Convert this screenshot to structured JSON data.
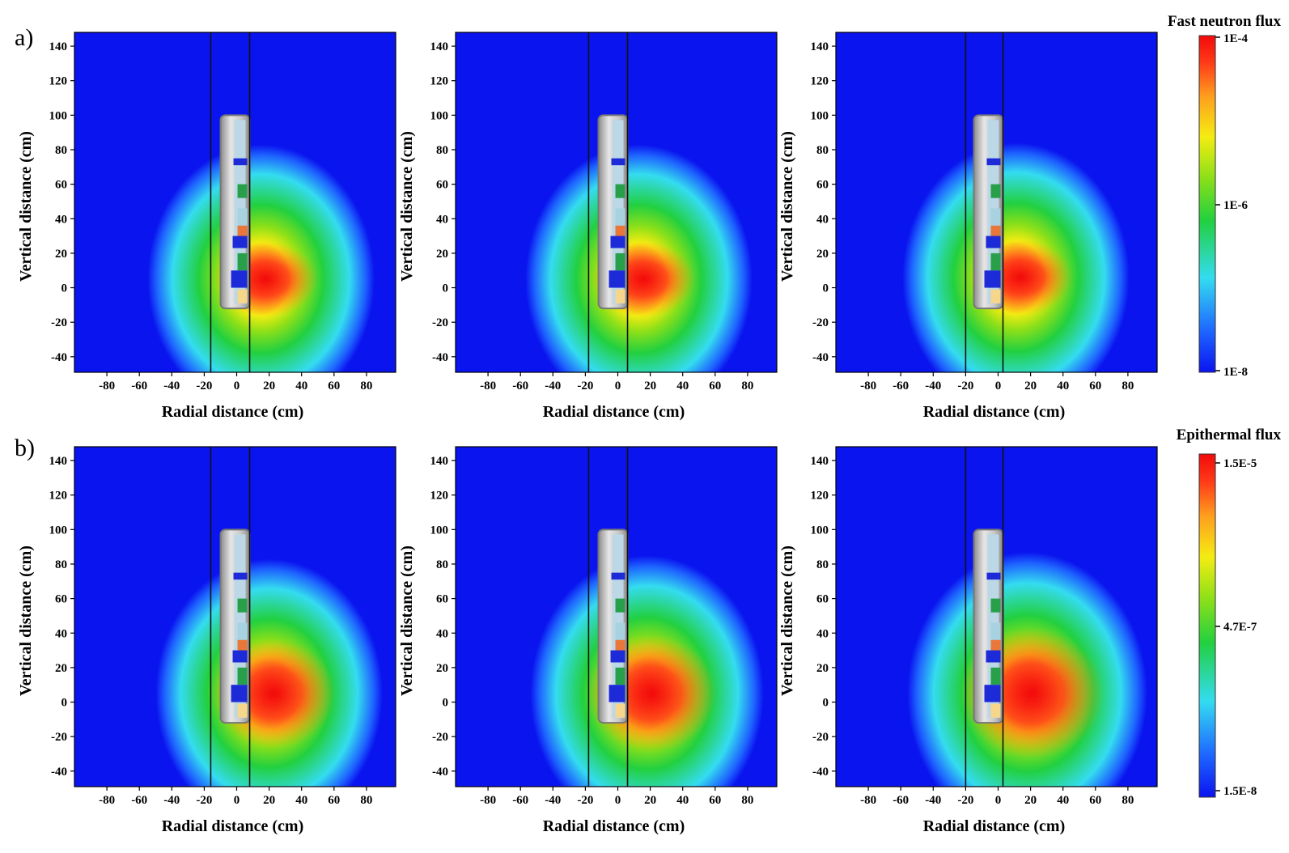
{
  "figure": {
    "rows": [
      {
        "label": "a)",
        "colorbar_title": "Fast neutron flux",
        "colorbar_ticks": [
          "1E-4",
          "1E-6",
          "1E-8"
        ]
      },
      {
        "label": "b)",
        "colorbar_title": "Epithermal flux",
        "colorbar_ticks": [
          "1.5E-5",
          "4.7E-7",
          "1.5E-8"
        ]
      }
    ]
  },
  "colors": {
    "colormap": [
      "#0a14ef",
      "#1e64ff",
      "#34dcf0",
      "#22d040",
      "#8ee018",
      "#f4ec12",
      "#ff9e1e",
      "#ff3a18",
      "#f20a0a"
    ],
    "background": "#0a14ef"
  },
  "chart_data": [
    {
      "type": "heatmap",
      "row": "a",
      "xlabel": "Radial distance (cm)",
      "ylabel": "Vertical distance (cm)",
      "xlim": [
        -100,
        98
      ],
      "ylim": [
        -49,
        148
      ],
      "xticks": [
        -80,
        -60,
        -40,
        -20,
        0,
        20,
        40,
        60,
        80
      ],
      "yticks": [
        -40,
        -20,
        0,
        20,
        40,
        60,
        80,
        100,
        120,
        140
      ],
      "xtick_labels": [
        "-80",
        "-60",
        "-40",
        "-20",
        "0",
        "20",
        "40",
        "60",
        "80"
      ],
      "ytick_labels": [
        "-40",
        "-20",
        "0",
        "20",
        "40",
        "60",
        "80",
        "100",
        "120",
        "140"
      ],
      "borehole_lines_x": [
        -16,
        8
      ],
      "peak_center": [
        15,
        5
      ],
      "field_radius": [
        70,
        78
      ],
      "hot_radius": [
        32,
        22
      ]
    },
    {
      "type": "heatmap",
      "row": "a",
      "xlabel": "Radial distance (cm)",
      "ylabel": "Vertical distance (cm)",
      "xlim": [
        -100,
        98
      ],
      "ylim": [
        -49,
        148
      ],
      "xticks": [
        -80,
        -60,
        -40,
        -20,
        0,
        20,
        40,
        60,
        80
      ],
      "yticks": [
        -40,
        -20,
        0,
        20,
        40,
        60,
        80,
        100,
        120,
        140
      ],
      "xtick_labels": [
        "-80",
        "-60",
        "-40",
        "-20",
        "0",
        "20",
        "40",
        "60",
        "80"
      ],
      "ytick_labels": [
        "-40",
        "-20",
        "0",
        "20",
        "40",
        "60",
        "80",
        "100",
        "120",
        "140"
      ],
      "borehole_lines_x": [
        -18,
        6
      ],
      "peak_center": [
        13,
        5
      ],
      "field_radius": [
        70,
        78
      ],
      "hot_radius": [
        32,
        22
      ]
    },
    {
      "type": "heatmap",
      "row": "a",
      "xlabel": "Radial distance (cm)",
      "ylabel": "Vertical distance (cm)",
      "xlim": [
        -100,
        98
      ],
      "ylim": [
        -49,
        148
      ],
      "xticks": [
        -80,
        -60,
        -40,
        -20,
        0,
        20,
        40,
        60,
        80
      ],
      "yticks": [
        -40,
        -20,
        0,
        20,
        40,
        60,
        80,
        100,
        120,
        140
      ],
      "xtick_labels": [
        "-80",
        "-60",
        "-40",
        "-20",
        "0",
        "20",
        "40",
        "60",
        "80"
      ],
      "ytick_labels": [
        "-40",
        "-20",
        "0",
        "20",
        "40",
        "60",
        "80",
        "100",
        "120",
        "140"
      ],
      "borehole_lines_x": [
        -20,
        3
      ],
      "peak_center": [
        11,
        6
      ],
      "field_radius": [
        70,
        78
      ],
      "hot_radius": [
        32,
        22
      ]
    },
    {
      "type": "heatmap",
      "row": "b",
      "xlabel": "Radial distance (cm)",
      "ylabel": "Vertical distance (cm)",
      "xlim": [
        -100,
        98
      ],
      "ylim": [
        -49,
        148
      ],
      "xticks": [
        -80,
        -60,
        -40,
        -20,
        0,
        20,
        40,
        60,
        80
      ],
      "yticks": [
        -40,
        -20,
        0,
        20,
        40,
        60,
        80,
        100,
        120,
        140
      ],
      "xtick_labels": [
        "-80",
        "-60",
        "-40",
        "-20",
        "0",
        "20",
        "40",
        "60",
        "80"
      ],
      "ytick_labels": [
        "-40",
        "-20",
        "0",
        "20",
        "40",
        "60",
        "80",
        "100",
        "120",
        "140"
      ],
      "borehole_lines_x": [
        -16,
        8
      ],
      "peak_center": [
        20,
        5
      ],
      "field_radius": [
        70,
        78
      ],
      "hot_radius": [
        38,
        32
      ]
    },
    {
      "type": "heatmap",
      "row": "b",
      "xlabel": "Radial distance (cm)",
      "ylabel": "Vertical distance (cm)",
      "xlim": [
        -100,
        98
      ],
      "ylim": [
        -49,
        148
      ],
      "xticks": [
        -80,
        -60,
        -40,
        -20,
        0,
        20,
        40,
        60,
        80
      ],
      "yticks": [
        -40,
        -20,
        0,
        20,
        40,
        60,
        80,
        100,
        120,
        140
      ],
      "xtick_labels": [
        "-80",
        "-60",
        "-40",
        "-20",
        "0",
        "20",
        "40",
        "60",
        "80"
      ],
      "ytick_labels": [
        "-40",
        "-20",
        "0",
        "20",
        "40",
        "60",
        "80",
        "100",
        "120",
        "140"
      ],
      "borehole_lines_x": [
        -18,
        6
      ],
      "peak_center": [
        18,
        5
      ],
      "field_radius": [
        72,
        80
      ],
      "hot_radius": [
        40,
        34
      ]
    },
    {
      "type": "heatmap",
      "row": "b",
      "xlabel": "Radial distance (cm)",
      "ylabel": "Vertical distance (cm)",
      "xlim": [
        -100,
        98
      ],
      "ylim": [
        -49,
        148
      ],
      "xticks": [
        -80,
        -60,
        -40,
        -20,
        0,
        20,
        40,
        60,
        80
      ],
      "yticks": [
        -40,
        -20,
        0,
        20,
        40,
        60,
        80,
        100,
        120,
        140
      ],
      "xtick_labels": [
        "-80",
        "-60",
        "-40",
        "-20",
        "0",
        "20",
        "40",
        "60",
        "80"
      ],
      "ytick_labels": [
        "-40",
        "-20",
        "0",
        "20",
        "40",
        "60",
        "80",
        "100",
        "120",
        "140"
      ],
      "borehole_lines_x": [
        -20,
        3
      ],
      "peak_center": [
        18,
        5
      ],
      "field_radius": [
        74,
        82
      ],
      "hot_radius": [
        44,
        38
      ]
    }
  ]
}
